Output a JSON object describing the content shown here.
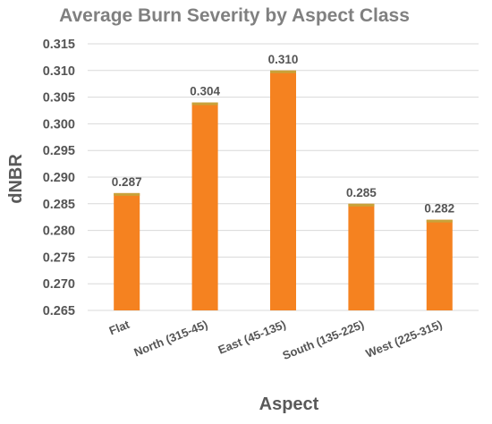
{
  "chart_data": {
    "type": "bar",
    "title": "Average Burn Severity by Aspect Class",
    "xlabel": "Aspect",
    "ylabel": "dNBR",
    "categories": [
      "Flat",
      "North (315-45)",
      "East (45-135)",
      "South (135-225)",
      "West (225-315)"
    ],
    "values": [
      0.287,
      0.304,
      0.31,
      0.285,
      0.282
    ],
    "value_labels": [
      "0.287",
      "0.304",
      "0.310",
      "0.285",
      "0.282"
    ],
    "ylim": [
      0.265,
      0.315
    ],
    "yticks": [
      "0.265",
      "0.270",
      "0.275",
      "0.280",
      "0.285",
      "0.290",
      "0.295",
      "0.300",
      "0.305",
      "0.310",
      "0.315"
    ],
    "grid": true,
    "legend": "none",
    "bar_color": "#f58220",
    "bar_top_color": "#c8a23a"
  }
}
